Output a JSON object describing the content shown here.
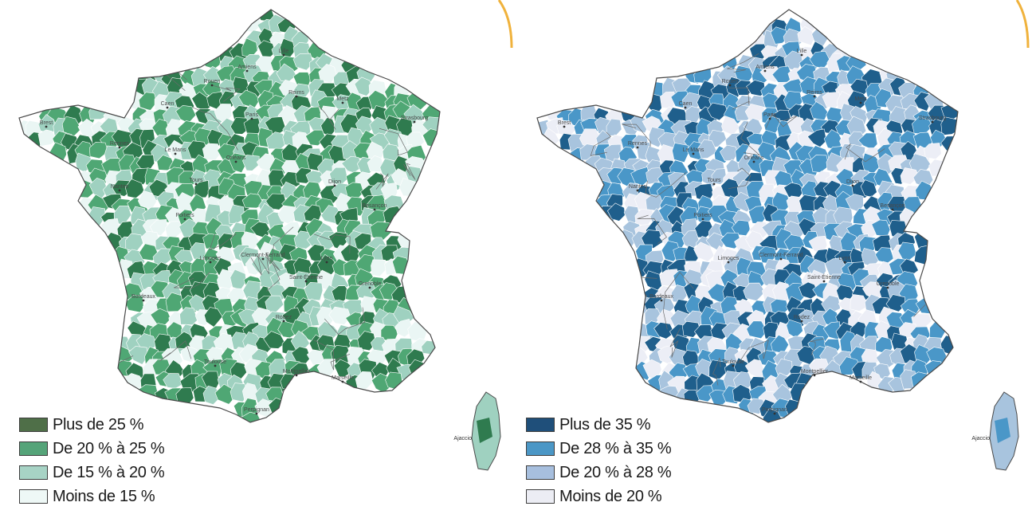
{
  "colors": {
    "accent_arc": "#f0b23c",
    "border": "#4a4a4a",
    "map_left_palette": [
      "#2f7b4f",
      "#4fa774",
      "#9fd1c0",
      "#eaf6f4"
    ],
    "map_right_palette": [
      "#1f5f8c",
      "#4a97c8",
      "#a8c4de",
      "#eceef6"
    ]
  },
  "maps": [
    {
      "legend": [
        {
          "label": "Plus de 25 %",
          "color": "#4f6f48"
        },
        {
          "label": "De 20 % à 25 %",
          "color": "#55a479"
        },
        {
          "label": "De 15 % à 20 %",
          "color": "#a7d3c5"
        },
        {
          "label": "Moins de 15 %",
          "color": "#eef8f6"
        }
      ],
      "corsica_label": "Ajaccio"
    },
    {
      "legend": [
        {
          "label": "Plus de 35 %",
          "color": "#1f4f7a"
        },
        {
          "label": "De 28 % à 35 %",
          "color": "#4b97c6"
        },
        {
          "label": "De 20 % à 28 %",
          "color": "#a7bfde"
        },
        {
          "label": "Moins de 20 %",
          "color": "#ecedf4"
        }
      ],
      "corsica_label": "Ajaccio"
    }
  ],
  "cities": [
    "Lille",
    "Rouen",
    "Amiens",
    "Reims",
    "Metz",
    "Strasbourg",
    "Paris",
    "Caen",
    "Rennes",
    "Nantes",
    "Orléans",
    "Tours",
    "Dijon",
    "Besançon",
    "Poitiers",
    "Limoges",
    "Clermont-Ferrand",
    "Lyon",
    "Grenoble",
    "Saint-Étienne",
    "Bordeaux",
    "Toulouse",
    "Montpellier",
    "Marseille",
    "Perpignan",
    "Brest",
    "Le Mans",
    "Rodez"
  ]
}
